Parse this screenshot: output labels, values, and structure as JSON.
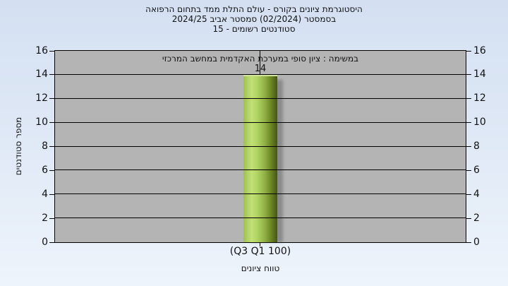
{
  "chart_data": {
    "type": "bar",
    "title_lines": [
      "היסטוגרמת ציונים בקורס - עולם התלת ממד בתחום הרפואה",
      "בסמסטר  (02/2024)  סמסטר אביב 2024/25",
      "סטודנטים רשומים - 15"
    ],
    "subtitle": "במשימה : ציון סופי במערכת האקדמית במחשב המרכזי",
    "categories": [
      "(Q3 Q1 100)"
    ],
    "values": [
      14
    ],
    "xlabel": "טווח ציונים",
    "ylabel": "מספר סטודנטים",
    "ylim": [
      0,
      16
    ],
    "ytick_step": 2,
    "grid": true,
    "legend": "none",
    "colors": {
      "bar_light": "#c3e076",
      "bar_mid": "#9cc052",
      "bar_dark": "#46551a",
      "plot_background": "#b4b4b4",
      "gridline": "#000000",
      "page_bg_top": "#d4e0f2",
      "page_bg_bottom": "#eef4fb",
      "text": "#111111"
    }
  }
}
